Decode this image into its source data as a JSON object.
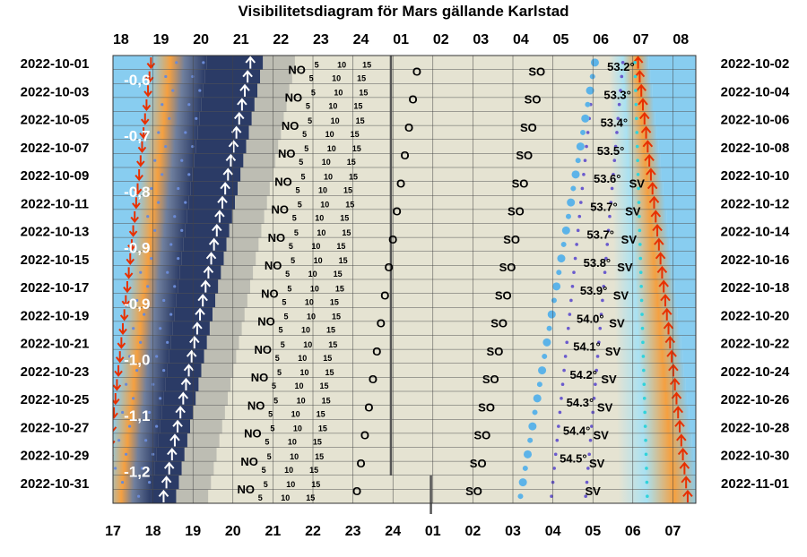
{
  "chart_data": {
    "type": "visibility-diagram",
    "title": "Visibilitetsdiagram för Mars gällande Karlstad",
    "top_hour_labels": [
      "18",
      "19",
      "20",
      "21",
      "22",
      "23",
      "24",
      "01",
      "02",
      "03",
      "04",
      "05",
      "06",
      "07",
      "08"
    ],
    "bottom_hour_labels": [
      "17",
      "18",
      "19",
      "20",
      "21",
      "22",
      "23",
      "24",
      "01",
      "02",
      "03",
      "04",
      "05",
      "06",
      "07"
    ],
    "left_dates": [
      "2022-10-01",
      "2022-10-03",
      "2022-10-05",
      "2022-10-07",
      "2022-10-09",
      "2022-10-11",
      "2022-10-13",
      "2022-10-15",
      "2022-10-17",
      "2022-10-19",
      "2022-10-21",
      "2022-10-23",
      "2022-10-25",
      "2022-10-27",
      "2022-10-29",
      "2022-10-31"
    ],
    "right_dates": [
      "2022-10-02",
      "2022-10-04",
      "2022-10-06",
      "2022-10-08",
      "2022-10-10",
      "2022-10-12",
      "2022-10-14",
      "2022-10-16",
      "2022-10-18",
      "2022-10-20",
      "2022-10-22",
      "2022-10-24",
      "2022-10-26",
      "2022-10-28",
      "2022-10-30",
      "2022-11-01"
    ],
    "magnitudes": [
      "-0,6",
      "-0,7",
      "-0,8",
      "-0,9",
      "-0,9",
      "-1,0",
      "-1,1",
      "-1,2"
    ],
    "max_altitudes": [
      "53.2°",
      "53.3°",
      "53.4°",
      "53.5°",
      "53.6°",
      "53.7°",
      "53.7°",
      "53.8°",
      "53.9°",
      "54.0°",
      "54.1°",
      "54.2°",
      "54.3°",
      "54.4°",
      "54.5°"
    ],
    "direction_labels": [
      "NO",
      "O",
      "SO",
      "SV"
    ],
    "minute_labels": [
      "5",
      "10",
      "15"
    ],
    "colors": {
      "day": "#88cdf0",
      "twilight_orange": "#f09a3a",
      "night_dark": "#2b3b66",
      "mars_visible": "#e5e3d2",
      "mars_shadow": "#bdbdb3",
      "rise_arrow": "#ffffff",
      "sunset_arrow": "#e83000",
      "sunrise_arrow": "#e83000",
      "transit_dot": "#5cb3e8",
      "azimuth_dot": "#6a5acd"
    }
  }
}
